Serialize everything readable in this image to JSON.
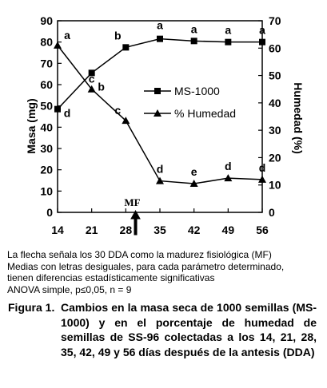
{
  "chart_data": {
    "type": "line",
    "x": [
      14,
      21,
      28,
      35,
      42,
      49,
      56
    ],
    "xticks": [
      "14",
      "21",
      "28",
      "35",
      "42",
      "49",
      "56"
    ],
    "xlim": [
      14,
      56
    ],
    "y_left": {
      "label": "Masa (mg)",
      "lim": [
        0,
        90
      ],
      "ticks": [
        "0",
        "10",
        "20",
        "30",
        "40",
        "50",
        "60",
        "70",
        "80",
        "90"
      ]
    },
    "y_right": {
      "label": "Humedad (%)",
      "lim": [
        0,
        70
      ],
      "ticks": [
        "0",
        "10",
        "20",
        "30",
        "40",
        "50",
        "60",
        "70"
      ]
    },
    "series": [
      {
        "name": "MS-1000",
        "axis": "left",
        "marker": "square",
        "values": [
          48.5,
          65.5,
          77.5,
          81.5,
          80.5,
          80,
          80
        ],
        "letters": [
          "d",
          "c",
          "b",
          "a",
          "a",
          "a",
          "a"
        ]
      },
      {
        "name": "% Humedad",
        "axis": "right",
        "marker": "triangle",
        "values": [
          61,
          45,
          33.5,
          11.5,
          10.5,
          12.5,
          12
        ],
        "letters": [
          "a",
          "b",
          "c",
          "d",
          "e",
          "d",
          "d"
        ]
      }
    ],
    "annotation": {
      "text": "MF",
      "x": 30
    },
    "legend": "center-right",
    "grid": false
  },
  "notes": [
    "La flecha señala los 30 DDA como la madurez fisiológica (MF)",
    "Medias con letras desiguales, para cada parámetro determinado,",
    "tienen diferencias estadísticamente significativas",
    "ANOVA simple, p≤0,05, n = 9"
  ],
  "caption": {
    "label": "Figura 1.",
    "text": "Cambios en la masa seca de 1000 semillas (MS-1000) y en el porcentaje de humedad de semillas de SS-96 colectadas a los 14, 21, 28, 35, 42, 49 y 56 días después de la antesis (DDA)"
  }
}
